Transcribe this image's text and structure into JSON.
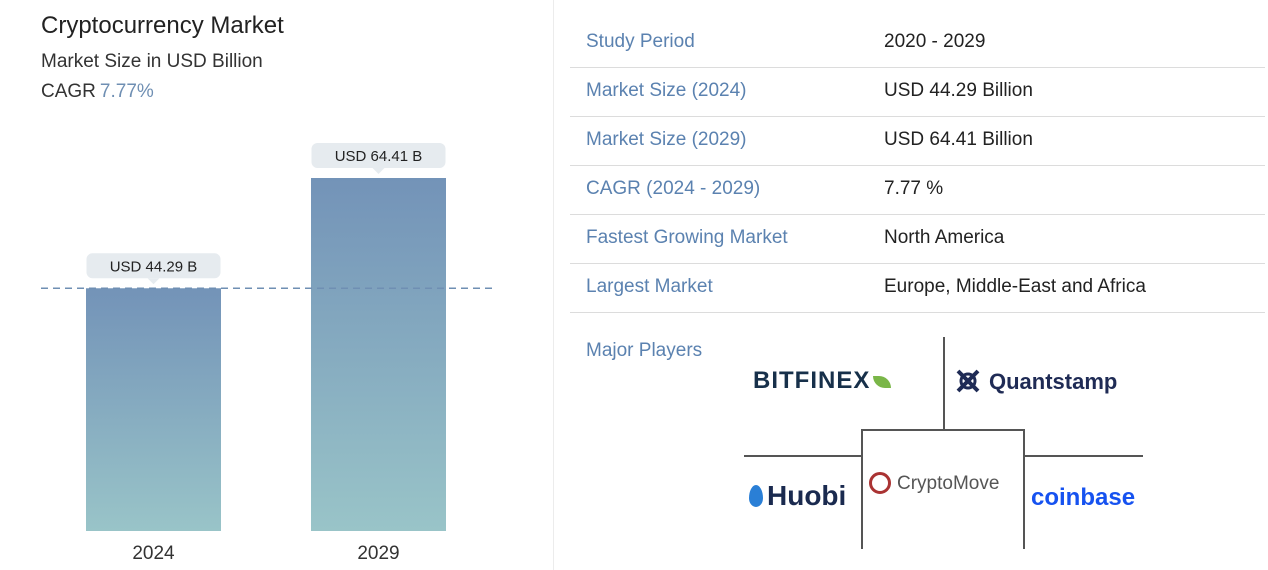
{
  "header": {
    "title": "Cryptocurrency Market",
    "subtitle": "Market Size in USD Billion",
    "cagr_label": "CAGR",
    "cagr_value": "7.77%"
  },
  "chart_data": {
    "type": "bar",
    "categories": [
      "2024",
      "2029"
    ],
    "values": [
      44.29,
      64.41
    ],
    "data_labels": [
      "USD 44.29 B",
      "USD 64.41 B"
    ],
    "unit": "USD Billion",
    "reference_line": 44.29,
    "colors": {
      "bar_top": "#7393b8",
      "bar_bottom": "#99c4c8",
      "bubble": "#e6ebef",
      "ref_line": "#6f8fb3"
    },
    "grid": false,
    "legend": "none"
  },
  "summary": {
    "rows": [
      {
        "key": "Study Period",
        "value": "2020 - 2029"
      },
      {
        "key": "Market Size (2024)",
        "value": "USD 44.29 Billion"
      },
      {
        "key": "Market Size (2029)",
        "value": "USD 64.41 Billion"
      },
      {
        "key": "CAGR (2024 - 2029)",
        "value": "7.77 %"
      },
      {
        "key": "Fastest Growing Market",
        "value": "North America"
      },
      {
        "key": "Largest Market",
        "value": "Europe, Middle-East and Africa"
      }
    ]
  },
  "players": {
    "label": "Major Players",
    "logos": [
      "BITFINEX",
      "Quantstamp",
      "Huobi",
      "CryptoMove",
      "coinbase"
    ],
    "icons": [
      "leaf-icon",
      "quantstamp-icon",
      "huobi-flame-icon",
      "cryptomove-gear-icon"
    ]
  }
}
